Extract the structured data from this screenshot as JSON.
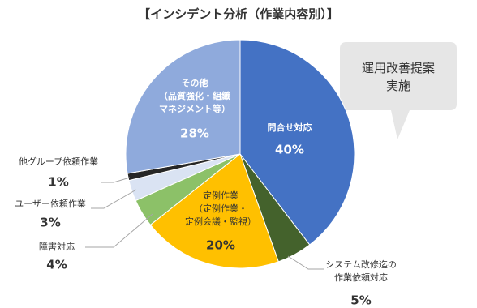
{
  "chart_data": {
    "type": "pie",
    "title": "【インシデント分析（作業内容別）】",
    "categories": [
      "問合せ対応",
      "システム改修迄の\n作業依頼対応",
      "定例作業\n（定例作業・\n定例会議・監視）",
      "障害対応",
      "ユーザー依頼作業",
      "他グループ依頼作業",
      "その他\n（品質強化・組織\nマネジメント等）"
    ],
    "values": [
      40,
      5,
      20,
      4,
      3,
      1,
      28
    ],
    "value_labels": [
      "40%",
      "5%",
      "20%",
      "4%",
      "3%",
      "1%",
      "28%"
    ],
    "colors": [
      "#4472c4",
      "#44622c",
      "#ffc000",
      "#8cc168",
      "#dae3f3",
      "#262626",
      "#8faadc"
    ],
    "annotation": "運用改善提案\n実施"
  }
}
